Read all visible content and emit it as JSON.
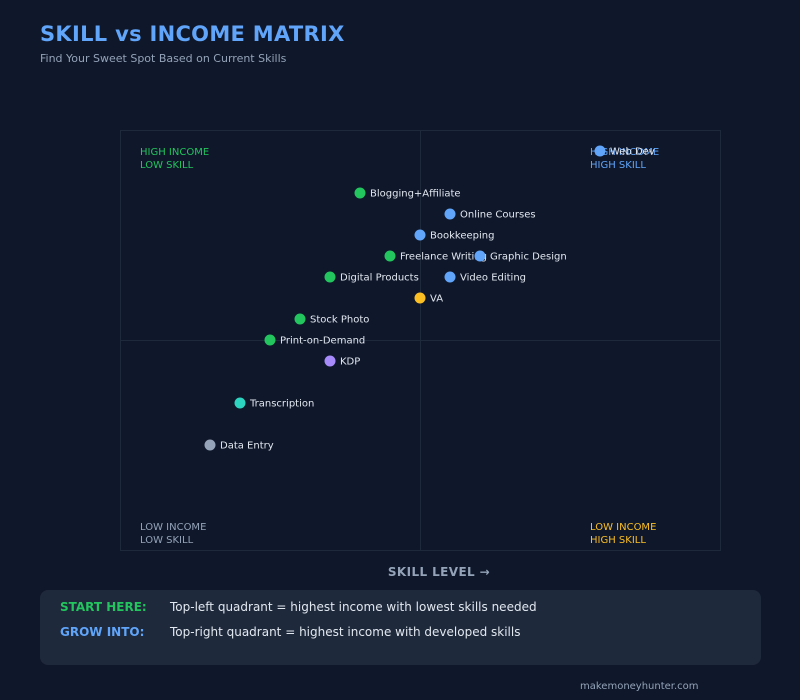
{
  "header": {
    "title": "SKILL vs INCOME MATRIX",
    "subtitle": "Find Your Sweet Spot Based on Current Skills"
  },
  "colors": {
    "background": "#0f172a",
    "panel": "#1e293b",
    "green": "#22c55e",
    "blue": "#60a5fa",
    "yellow": "#fbbf24",
    "purple": "#a78bfa",
    "teal": "#2dd4bf",
    "gray": "#94a3b8"
  },
  "chart_data": {
    "type": "scatter",
    "xlabel": "SKILL LEVEL →",
    "ylabel": "",
    "xlim": [
      0,
      10
    ],
    "ylim": [
      0,
      10
    ],
    "quadrant_labels": [
      {
        "lines": [
          "HIGH INCOME",
          "LOW SKILL"
        ],
        "position": "top-left",
        "color": "#22c55e"
      },
      {
        "lines": [
          "HIGH INCOME",
          "HIGH SKILL"
        ],
        "position": "top-right",
        "color": "#60a5fa"
      },
      {
        "lines": [
          "LOW INCOME",
          "LOW SKILL"
        ],
        "position": "bottom-left",
        "color": "#94a3b8"
      },
      {
        "lines": [
          "LOW INCOME",
          "HIGH SKILL"
        ],
        "position": "bottom-right",
        "color": "#fbbf24"
      }
    ],
    "points": [
      {
        "label": "Web Dev",
        "x": 8.0,
        "y": 9.5,
        "color": "#60a5fa"
      },
      {
        "label": "Blogging+Affiliate",
        "x": 4.0,
        "y": 8.5,
        "color": "#22c55e"
      },
      {
        "label": "Online Courses",
        "x": 5.5,
        "y": 8.0,
        "color": "#60a5fa"
      },
      {
        "label": "Bookkeeping",
        "x": 5.0,
        "y": 7.5,
        "color": "#60a5fa"
      },
      {
        "label": "Freelance Writing",
        "x": 4.5,
        "y": 7.0,
        "color": "#22c55e"
      },
      {
        "label": "Graphic Design",
        "x": 6.0,
        "y": 7.0,
        "color": "#60a5fa"
      },
      {
        "label": "Digital Products",
        "x": 3.5,
        "y": 6.5,
        "color": "#22c55e"
      },
      {
        "label": "Video Editing",
        "x": 5.5,
        "y": 6.5,
        "color": "#60a5fa"
      },
      {
        "label": "VA",
        "x": 5.0,
        "y": 6.0,
        "color": "#fbbf24"
      },
      {
        "label": "Stock Photo",
        "x": 3.0,
        "y": 5.5,
        "color": "#22c55e"
      },
      {
        "label": "Print-on-Demand",
        "x": 2.5,
        "y": 5.0,
        "color": "#22c55e"
      },
      {
        "label": "KDP",
        "x": 3.5,
        "y": 4.5,
        "color": "#a78bfa"
      },
      {
        "label": "Transcription",
        "x": 2.0,
        "y": 3.5,
        "color": "#2dd4bf"
      },
      {
        "label": "Data Entry",
        "x": 1.5,
        "y": 2.5,
        "color": "#94a3b8"
      }
    ]
  },
  "tips": {
    "start_key": "START HERE:",
    "start_text": "Top-left quadrant = highest income with lowest skills needed",
    "grow_key": "GROW INTO:",
    "grow_text": "Top-right quadrant = highest income with developed skills"
  },
  "footer": "makemoneyhunter.com"
}
